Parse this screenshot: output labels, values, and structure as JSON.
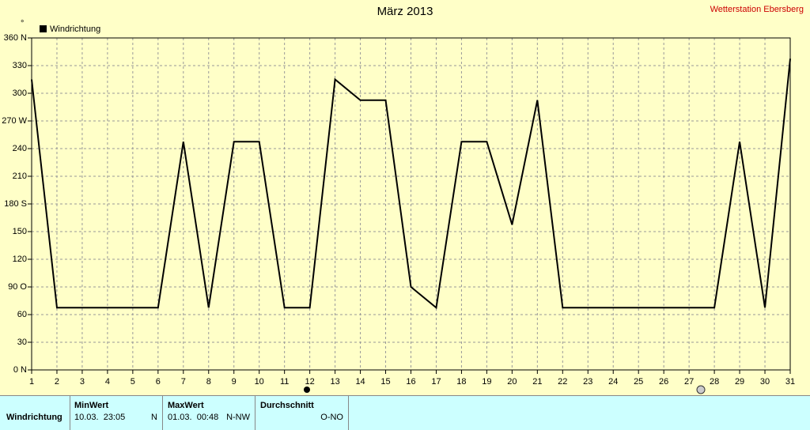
{
  "chart_data": {
    "type": "line",
    "title": "März 2013",
    "station": "Wetterstation Ebersberg",
    "y_unit": "°",
    "x": [
      1,
      2,
      3,
      4,
      5,
      6,
      7,
      8,
      9,
      10,
      11,
      12,
      13,
      14,
      15,
      16,
      17,
      18,
      19,
      20,
      21,
      22,
      23,
      24,
      25,
      26,
      27,
      28,
      29,
      30,
      31
    ],
    "series": [
      {
        "name": "Windrichtung",
        "color": "#000000",
        "values": [
          315,
          67.5,
          67.5,
          67.5,
          67.5,
          67.5,
          247.5,
          67.5,
          247.5,
          247.5,
          67.5,
          67.5,
          315,
          292.5,
          292.5,
          90,
          67.5,
          247.5,
          247.5,
          157.5,
          292.5,
          67.5,
          67.5,
          67.5,
          67.5,
          67.5,
          67.5,
          67.5,
          247.5,
          67.5,
          337.5
        ]
      }
    ],
    "xlim": [
      1,
      31
    ],
    "xticks": [
      1,
      2,
      3,
      4,
      5,
      6,
      7,
      8,
      9,
      10,
      11,
      12,
      13,
      14,
      15,
      16,
      17,
      18,
      19,
      20,
      21,
      22,
      23,
      24,
      25,
      26,
      27,
      28,
      29,
      30,
      31
    ],
    "ylim": [
      0,
      360
    ],
    "yticks": [
      {
        "value": 0,
        "label": "0 N"
      },
      30,
      60,
      {
        "value": 90,
        "label": "90 O"
      },
      120,
      150,
      {
        "value": 180,
        "label": "180 S"
      },
      210,
      240,
      {
        "value": 270,
        "label": "270 W"
      },
      300,
      330,
      {
        "value": 360,
        "label": "360 N"
      }
    ],
    "grid": true
  },
  "table": {
    "headers": [
      "MinWert",
      "MaxWert",
      "Durchschnitt"
    ],
    "rows": [
      {
        "label": "Windrichtung",
        "min": [
          "10.03.  23:05",
          "N"
        ],
        "max": [
          "01.03.  00:48",
          "N-NW"
        ],
        "avg": "O-NO"
      }
    ]
  }
}
